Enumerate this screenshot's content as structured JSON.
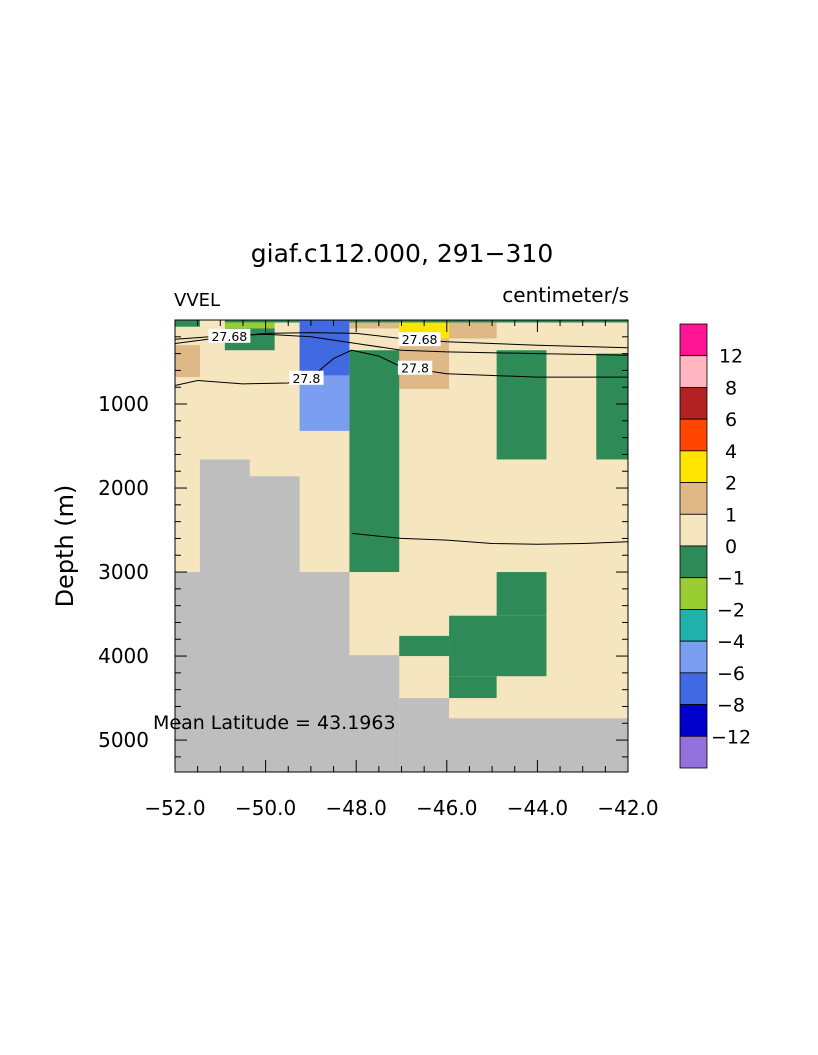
{
  "chart_data": {
    "type": "heatmap",
    "title": "giaf.c112.000, 291−310",
    "variable_label": "VVEL",
    "units_label": "centimeter/s",
    "ylabel": "Depth (m)",
    "xlabel": "",
    "xlim": [
      -52.0,
      -42.0
    ],
    "ylim": [
      5380,
      0
    ],
    "x_ticks": [
      -52,
      -50,
      -48,
      -46,
      -44,
      -42
    ],
    "x_tick_labels": [
      "−52.0",
      "−50.0",
      "−48.0",
      "−46.0",
      "−44.0",
      "−42.0"
    ],
    "y_ticks": [
      1000,
      2000,
      3000,
      4000,
      5000
    ],
    "y_tick_labels": [
      "1000",
      "2000",
      "3000",
      "4000",
      "5000"
    ],
    "annotation": "Mean Latitude = 43.1963",
    "land_color": "#bebebe",
    "background_fill": {
      "range": "0 to 1",
      "color": "#f5e6c0"
    },
    "colorbar": {
      "boundaries": [
        "12",
        "8",
        "6",
        "4",
        "2",
        "1",
        "0",
        "−1",
        "−2",
        "−4",
        "−6",
        "−8",
        "−12"
      ],
      "colors": [
        "#ff1493",
        "#ffb6c1",
        "#b22222",
        "#ff4500",
        "#ffe400",
        "#deb887",
        "#f5e6c0",
        "#2e8b57",
        "#9acd32",
        "#20b2aa",
        "#7b9ef0",
        "#4169e1",
        "#0000cd",
        "#9370db"
      ]
    },
    "cells": [
      {
        "x": [
          -52.0,
          -51.45
        ],
        "z": [
          0,
          80
        ],
        "range": "-1 to 0"
      },
      {
        "x": [
          -50.9,
          -49.25
        ],
        "z": [
          0,
          30
        ],
        "range": "-1 to 0"
      },
      {
        "x": [
          -48.15,
          -42.0
        ],
        "z": [
          0,
          30
        ],
        "range": "-1 to 0"
      },
      {
        "x": [
          -50.9,
          -49.8
        ],
        "z": [
          30,
          100
        ],
        "range": "-2 to -1"
      },
      {
        "x": [
          -50.9,
          -49.8
        ],
        "z": [
          100,
          360
        ],
        "range": "-1 to 0"
      },
      {
        "x": [
          -49.25,
          -48.15
        ],
        "z": [
          0,
          660
        ],
        "range": "-8 to -6"
      },
      {
        "x": [
          -49.25,
          -48.15
        ],
        "z": [
          660,
          1320
        ],
        "range": "-6 to -4"
      },
      {
        "x": [
          -52.0,
          -51.45
        ],
        "z": [
          300,
          680
        ],
        "range": "1 to 2"
      },
      {
        "x": [
          -48.15,
          -47.05
        ],
        "z": [
          30,
          100
        ],
        "range": "1 to 2"
      },
      {
        "x": [
          -47.05,
          -45.95
        ],
        "z": [
          30,
          220
        ],
        "range": "2 to 4"
      },
      {
        "x": [
          -45.95,
          -44.9
        ],
        "z": [
          30,
          220
        ],
        "range": "1 to 2"
      },
      {
        "x": [
          -47.05,
          -45.95
        ],
        "z": [
          220,
          820
        ],
        "range": "1 to 2"
      },
      {
        "x": [
          -48.15,
          -47.05
        ],
        "z": [
          360,
          3000
        ],
        "range": "-1 to 0"
      },
      {
        "x": [
          -44.9,
          -43.8
        ],
        "z": [
          360,
          1660
        ],
        "range": "-1 to 0"
      },
      {
        "x": [
          -42.7,
          -42.0
        ],
        "z": [
          400,
          1660
        ],
        "range": "-1 to 0"
      },
      {
        "x": [
          -44.9,
          -43.8
        ],
        "z": [
          3000,
          3520
        ],
        "range": "-1 to 0"
      },
      {
        "x": [
          -45.95,
          -43.8
        ],
        "z": [
          3520,
          4240
        ],
        "range": "-1 to 0"
      },
      {
        "x": [
          -47.05,
          -45.95
        ],
        "z": [
          3760,
          4000
        ],
        "range": "-1 to 0"
      },
      {
        "x": [
          -45.95,
          -44.9
        ],
        "z": [
          4240,
          4500
        ],
        "range": "-1 to 0"
      }
    ],
    "land": [
      {
        "x": [
          -52.0,
          -51.45
        ],
        "z": [
          3000,
          5380
        ]
      },
      {
        "x": [
          -51.45,
          -50.35
        ],
        "z": [
          1660,
          5380
        ]
      },
      {
        "x": [
          -50.35,
          -49.25
        ],
        "z": [
          1860,
          5380
        ]
      },
      {
        "x": [
          -49.25,
          -48.15
        ],
        "z": [
          3000,
          5380
        ]
      },
      {
        "x": [
          -48.15,
          -47.05
        ],
        "z": [
          3990,
          5380
        ]
      },
      {
        "x": [
          -47.05,
          -45.95
        ],
        "z": [
          4500,
          5380
        ]
      },
      {
        "x": [
          -45.95,
          -42.0
        ],
        "z": [
          4740,
          5380
        ]
      }
    ],
    "contours": [
      {
        "label": "27.68",
        "label_at": [
          -50.8,
          200
        ],
        "label_at_2": [
          -46.6,
          240
        ],
        "points": [
          [
            -52.0,
            280
          ],
          [
            -51.0,
            210
          ],
          [
            -50.0,
            160
          ],
          [
            -49.0,
            150
          ],
          [
            -48.0,
            160
          ],
          [
            -47.0,
            220
          ],
          [
            -46.0,
            260
          ],
          [
            -44.0,
            300
          ],
          [
            -42.0,
            330
          ]
        ]
      },
      {
        "label": "",
        "points": [
          [
            -52.0,
            230
          ],
          [
            -51.0,
            190
          ],
          [
            -50.0,
            170
          ],
          [
            -49.0,
            200
          ],
          [
            -48.0,
            280
          ],
          [
            -47.0,
            360
          ],
          [
            -46.0,
            380
          ],
          [
            -44.0,
            400
          ],
          [
            -42.0,
            420
          ]
        ]
      },
      {
        "label": "27.8",
        "label_at": [
          -49.1,
          700
        ],
        "label_at_2": [
          -46.7,
          580
        ],
        "points": [
          [
            -52.0,
            780
          ],
          [
            -51.5,
            720
          ],
          [
            -50.5,
            760
          ],
          [
            -49.5,
            750
          ],
          [
            -48.9,
            640
          ],
          [
            -48.5,
            460
          ],
          [
            -48.1,
            360
          ],
          [
            -47.5,
            430
          ],
          [
            -47.0,
            560
          ],
          [
            -46.0,
            640
          ],
          [
            -44.0,
            680
          ],
          [
            -42.0,
            680
          ]
        ]
      },
      {
        "label": "",
        "points": [
          [
            -48.1,
            2540
          ],
          [
            -47.0,
            2600
          ],
          [
            -46.0,
            2620
          ],
          [
            -45.0,
            2660
          ],
          [
            -44.0,
            2670
          ],
          [
            -43.0,
            2660
          ],
          [
            -42.0,
            2640
          ]
        ]
      }
    ]
  }
}
